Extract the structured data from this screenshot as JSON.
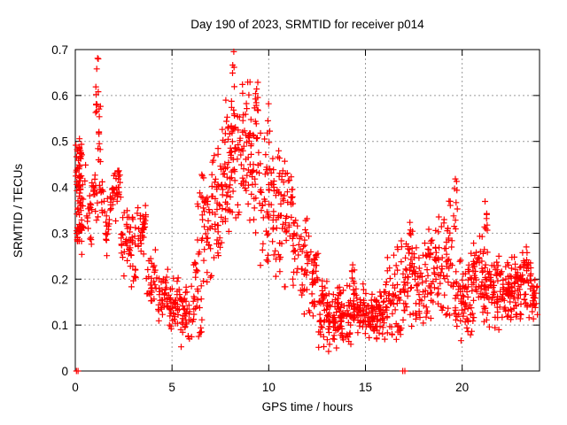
{
  "chart_data": {
    "type": "scatter",
    "title": "Day 190 of 2023, SRMTID for receiver p014",
    "xlabel": "GPS time / hours",
    "ylabel": "SRMTID / TECUs",
    "xlim": [
      0,
      24
    ],
    "ylim": [
      0,
      0.7
    ],
    "xticks": [
      {
        "v": 0,
        "label": "0"
      },
      {
        "v": 5,
        "label": "5"
      },
      {
        "v": 10,
        "label": "10"
      },
      {
        "v": 15,
        "label": "15"
      },
      {
        "v": 20,
        "label": "20"
      }
    ],
    "yticks": [
      {
        "v": 0,
        "label": "0"
      },
      {
        "v": 0.1,
        "label": "0.1"
      },
      {
        "v": 0.2,
        "label": "0.2"
      },
      {
        "v": 0.3,
        "label": "0.3"
      },
      {
        "v": 0.4,
        "label": "0.4"
      },
      {
        "v": 0.5,
        "label": "0.5"
      },
      {
        "v": 0.6,
        "label": "0.6"
      },
      {
        "v": 0.7,
        "label": "0.7"
      }
    ],
    "grid": true,
    "legend": "none",
    "marker": {
      "shape": "plus",
      "size": 7,
      "stroke_width": 1.2,
      "color": "#ff0000"
    },
    "colors": {
      "axis": "#000000",
      "grid": "#9a9a9a",
      "background": "#ffffff"
    },
    "seed": 7,
    "series_note": "dense scatter of ~1800 points; envelope encoded as segments [t_start_h, t_end_h, n_points, y_min_TECU, y_max_TECU, distribution(c=center-weighted,u=uniform)]",
    "segments": [
      [
        0.02,
        0.35,
        55,
        0.33,
        0.512,
        "c"
      ],
      [
        0.02,
        0.35,
        25,
        0.24,
        0.35,
        "c"
      ],
      [
        0.35,
        0.9,
        26,
        0.27,
        0.46,
        "c"
      ],
      [
        0.9,
        1.05,
        10,
        0.32,
        0.45,
        "c"
      ],
      [
        1.05,
        1.3,
        22,
        0.44,
        0.695,
        "u"
      ],
      [
        1.05,
        1.5,
        18,
        0.3,
        0.44,
        "c"
      ],
      [
        1.5,
        1.85,
        20,
        0.25,
        0.41,
        "c"
      ],
      [
        1.85,
        2.35,
        30,
        0.32,
        0.465,
        "c"
      ],
      [
        2.35,
        2.75,
        24,
        0.2,
        0.37,
        "c"
      ],
      [
        2.75,
        3.2,
        30,
        0.18,
        0.35,
        "c"
      ],
      [
        3.2,
        3.65,
        34,
        0.24,
        0.375,
        "c"
      ],
      [
        3.65,
        4.2,
        28,
        0.12,
        0.27,
        "c"
      ],
      [
        4.2,
        4.8,
        36,
        0.1,
        0.23,
        "c"
      ],
      [
        4.8,
        5.45,
        42,
        0.08,
        0.22,
        "c"
      ],
      [
        5.45,
        6.05,
        40,
        0.035,
        0.2,
        "c"
      ],
      [
        6.05,
        6.55,
        28,
        0.05,
        0.28,
        "c"
      ],
      [
        6.3,
        6.75,
        14,
        0.25,
        0.43,
        "u"
      ],
      [
        6.55,
        7.05,
        30,
        0.12,
        0.48,
        "c"
      ],
      [
        7.05,
        7.55,
        40,
        0.2,
        0.56,
        "c"
      ],
      [
        7.55,
        8.05,
        46,
        0.26,
        0.62,
        "c"
      ],
      [
        8.05,
        8.55,
        46,
        0.3,
        0.7,
        "c"
      ],
      [
        8.55,
        9.05,
        44,
        0.27,
        0.695,
        "c"
      ],
      [
        9.05,
        9.55,
        40,
        0.26,
        0.66,
        "c"
      ],
      [
        9.55,
        10.05,
        38,
        0.22,
        0.6,
        "c"
      ],
      [
        10.05,
        10.55,
        34,
        0.2,
        0.585,
        "c"
      ],
      [
        10.55,
        11.05,
        38,
        0.16,
        0.52,
        "c"
      ],
      [
        11.05,
        11.55,
        34,
        0.15,
        0.45,
        "c"
      ],
      [
        11.55,
        12.05,
        30,
        0.12,
        0.38,
        "c"
      ],
      [
        12.05,
        12.55,
        36,
        0.08,
        0.32,
        "c"
      ],
      [
        12.55,
        13.05,
        40,
        0.05,
        0.22,
        "c"
      ],
      [
        13.05,
        13.55,
        40,
        0.04,
        0.18,
        "c"
      ],
      [
        13.55,
        14.05,
        40,
        0.05,
        0.19,
        "c"
      ],
      [
        14.05,
        14.55,
        40,
        0.05,
        0.21,
        "c"
      ],
      [
        14.3,
        14.5,
        6,
        0.19,
        0.24,
        "u"
      ],
      [
        14.55,
        15.05,
        40,
        0.06,
        0.2,
        "c"
      ],
      [
        15.05,
        15.55,
        40,
        0.06,
        0.18,
        "c"
      ],
      [
        15.55,
        16.05,
        40,
        0.05,
        0.2,
        "c"
      ],
      [
        16.05,
        16.55,
        34,
        0.05,
        0.26,
        "c"
      ],
      [
        16.55,
        17.05,
        34,
        0.05,
        0.3,
        "c"
      ],
      [
        17.05,
        17.55,
        32,
        0.08,
        0.33,
        "c"
      ],
      [
        17.25,
        17.45,
        8,
        0.25,
        0.325,
        "u"
      ],
      [
        17.55,
        18.05,
        30,
        0.08,
        0.28,
        "c"
      ],
      [
        18.05,
        18.55,
        34,
        0.1,
        0.31,
        "c"
      ],
      [
        18.55,
        19.05,
        34,
        0.1,
        0.35,
        "c"
      ],
      [
        19.05,
        19.55,
        34,
        0.1,
        0.4,
        "c"
      ],
      [
        19.55,
        19.75,
        10,
        0.3,
        0.42,
        "u"
      ],
      [
        19.55,
        20.05,
        30,
        0.05,
        0.26,
        "c"
      ],
      [
        20.05,
        20.55,
        40,
        0.06,
        0.28,
        "c"
      ],
      [
        20.55,
        21.05,
        40,
        0.1,
        0.31,
        "c"
      ],
      [
        21.05,
        21.55,
        40,
        0.08,
        0.3,
        "c"
      ],
      [
        21.15,
        21.35,
        8,
        0.3,
        0.375,
        "u"
      ],
      [
        21.55,
        22.05,
        40,
        0.08,
        0.27,
        "c"
      ],
      [
        22.05,
        22.55,
        45,
        0.1,
        0.25,
        "c"
      ],
      [
        22.55,
        23.05,
        45,
        0.1,
        0.26,
        "c"
      ],
      [
        23.05,
        23.55,
        40,
        0.1,
        0.3,
        "c"
      ],
      [
        23.55,
        23.9,
        25,
        0.1,
        0.22,
        "c"
      ]
    ],
    "zero_points": [
      [
        0.06,
        0
      ],
      [
        0.14,
        0
      ],
      [
        16.93,
        0
      ],
      [
        17.04,
        0
      ]
    ]
  }
}
